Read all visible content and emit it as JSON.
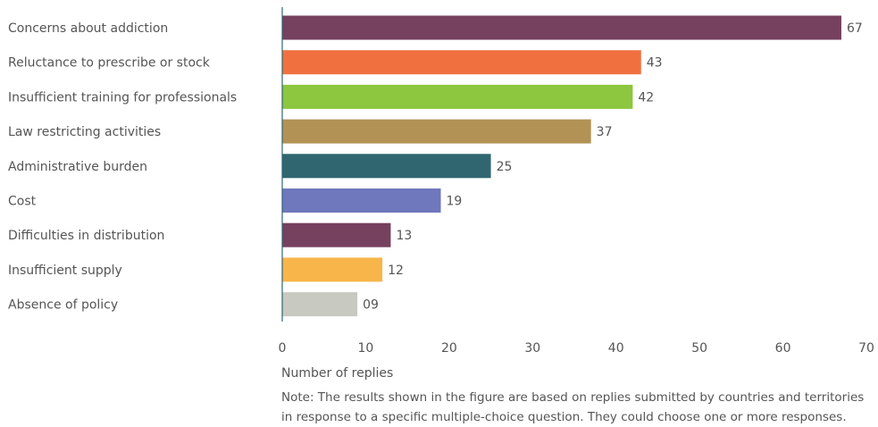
{
  "chart_data": {
    "type": "bar",
    "orientation": "horizontal",
    "categories": [
      "Concerns about addiction",
      "Reluctance to prescribe or stock",
      "Insufficient training for professionals",
      "Law restricting activities",
      "Administrative burden",
      "Cost",
      "Difficulties in distribution",
      "Insufficient supply",
      "Absence of policy"
    ],
    "values": [
      67,
      43,
      42,
      37,
      25,
      19,
      13,
      12,
      9
    ],
    "value_labels": [
      "67",
      "43",
      "42",
      "37",
      "25",
      "19",
      "13",
      "12",
      "09"
    ],
    "colors": [
      "#76405f",
      "#f07040",
      "#8dc63f",
      "#b39256",
      "#2f6670",
      "#6f77bd",
      "#76405f",
      "#f8b54a",
      "#c8c9c0"
    ],
    "xlabel": "Number of replies",
    "xlim": [
      0,
      70
    ],
    "xticks": [
      0,
      10,
      20,
      30,
      40,
      50,
      60,
      70
    ],
    "grid": false,
    "legend": "none"
  },
  "note": "Note: The results shown in the figure are based on replies submitted by countries and territories in response to a specific multiple-choice question. They could choose one or more responses."
}
